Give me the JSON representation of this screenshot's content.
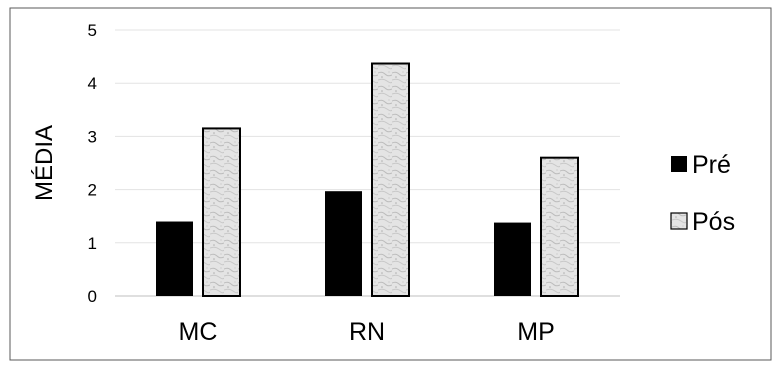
{
  "chart_data": {
    "type": "bar",
    "title": "",
    "xlabel": "",
    "ylabel": "MÉDIA",
    "ylim": [
      0,
      5
    ],
    "yticks": [
      "0",
      "1",
      "2",
      "3",
      "4",
      "5"
    ],
    "categories": [
      "MC",
      "RN",
      "MP"
    ],
    "series": [
      {
        "name": "Pré",
        "values": [
          1.4,
          1.97,
          1.38
        ],
        "color": "#000000"
      },
      {
        "name": "Pós",
        "values": [
          3.15,
          4.37,
          2.6
        ],
        "color": "#d9d9d9"
      }
    ],
    "grid": true,
    "legend": "right"
  }
}
